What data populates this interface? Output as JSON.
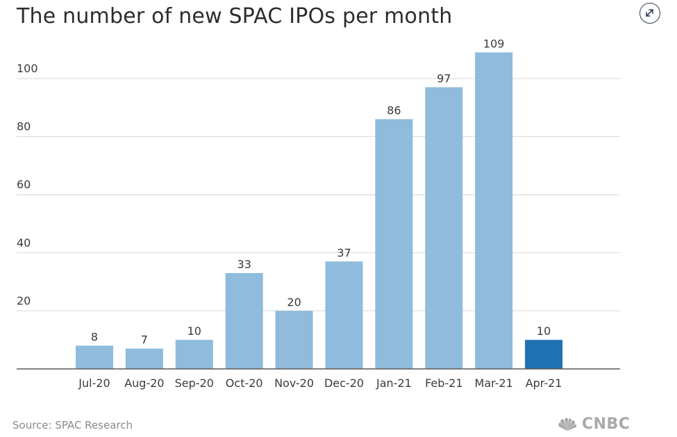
{
  "header": {
    "title": "The number of new SPAC IPOs per month"
  },
  "icons": {
    "expand": "expand-arrows-icon",
    "logo": "cnbc-peacock-icon"
  },
  "footer": {
    "source": "Source: SPAC Research",
    "logo_text": "CNBC"
  },
  "colors": {
    "bar": "#8fbbdc",
    "highlight": "#2070b4",
    "grid": "#d6d6d6",
    "axis": "#5a5a5a",
    "text": "#3a3a3a",
    "logo": "#a9a9a9"
  },
  "chart_data": {
    "type": "bar",
    "title": "The number of new SPAC IPOs per month",
    "categories": [
      "Jul-20",
      "Aug-20",
      "Sep-20",
      "Oct-20",
      "Nov-20",
      "Dec-20",
      "Jan-21",
      "Feb-21",
      "Mar-21",
      "Apr-21"
    ],
    "values": [
      8,
      7,
      10,
      33,
      20,
      37,
      86,
      97,
      109,
      10
    ],
    "data_labels": [
      "8",
      "7",
      "10",
      "33",
      "20",
      "37",
      "86",
      "97",
      "109",
      "10"
    ],
    "highlighted": [
      "Apr-21"
    ],
    "yticks": [
      20,
      40,
      60,
      80,
      100
    ],
    "ytick_labels": [
      "20",
      "40",
      "60",
      "80",
      "100"
    ],
    "ylim": [
      0,
      115
    ],
    "xlabel": "",
    "ylabel": "",
    "grid": true
  }
}
